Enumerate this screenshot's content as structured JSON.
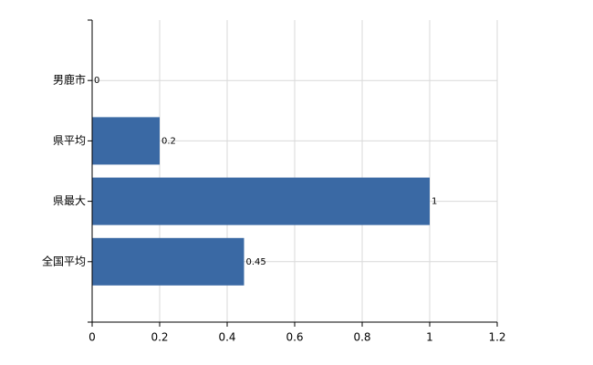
{
  "chart_data": {
    "type": "barh",
    "categories": [
      "男鹿市",
      "県平均",
      "県最大",
      "全国平均"
    ],
    "values": [
      0,
      0.2,
      1,
      0.45
    ],
    "color": "#3a69a4",
    "xlim": [
      0,
      1.2
    ],
    "xticks": [
      0,
      0.2,
      0.4,
      0.6,
      0.8,
      1,
      1.2
    ],
    "grid": true
  }
}
